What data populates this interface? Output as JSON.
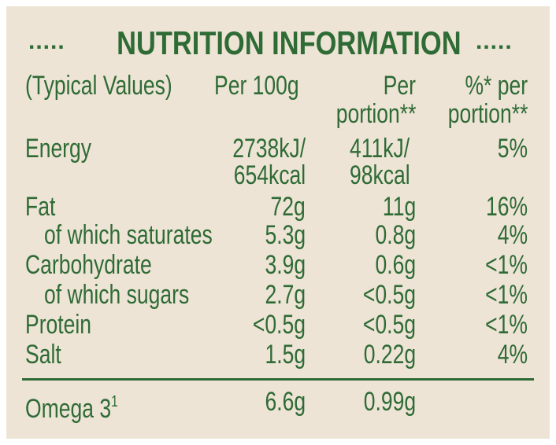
{
  "title": "NUTRITION INFORMATION",
  "title_dots": ".....",
  "colors": {
    "text": "#2f6b35",
    "background": "#ede4d6"
  },
  "header": {
    "typical": "(Typical Values)",
    "per100": "Per 100g",
    "portion_line1": "Per",
    "portion_line2": "portion**",
    "pct_line1": "%* per",
    "pct_line2": "portion**"
  },
  "energy": {
    "label": "Energy",
    "per100_kj": "2738kJ/",
    "per100_kcal": "654kcal",
    "portion_kj": "411kJ/",
    "portion_kcal": "98kcal",
    "pct": "5%"
  },
  "rows": [
    {
      "label": "Fat",
      "per100": "72g",
      "portion": "11g",
      "pct": "16%"
    },
    {
      "label": "of which saturates",
      "per100": "5.3g",
      "portion": "0.8g",
      "pct": "4%"
    },
    {
      "label": "Carbohydrate",
      "per100": "3.9g",
      "portion": "0.6g",
      "pct": "<1%"
    },
    {
      "label": "of which sugars",
      "per100": "2.7g",
      "portion": "<0.5g",
      "pct": "<1%"
    },
    {
      "label": "Protein",
      "per100": "<0.5g",
      "portion": "<0.5g",
      "pct": "<1%"
    },
    {
      "label": "Salt",
      "per100": "1.5g",
      "portion": "0.22g",
      "pct": "4%"
    }
  ],
  "omega": {
    "label": "Omega 3",
    "sup": "1",
    "per100": "6.6g",
    "portion": "0.99g"
  }
}
